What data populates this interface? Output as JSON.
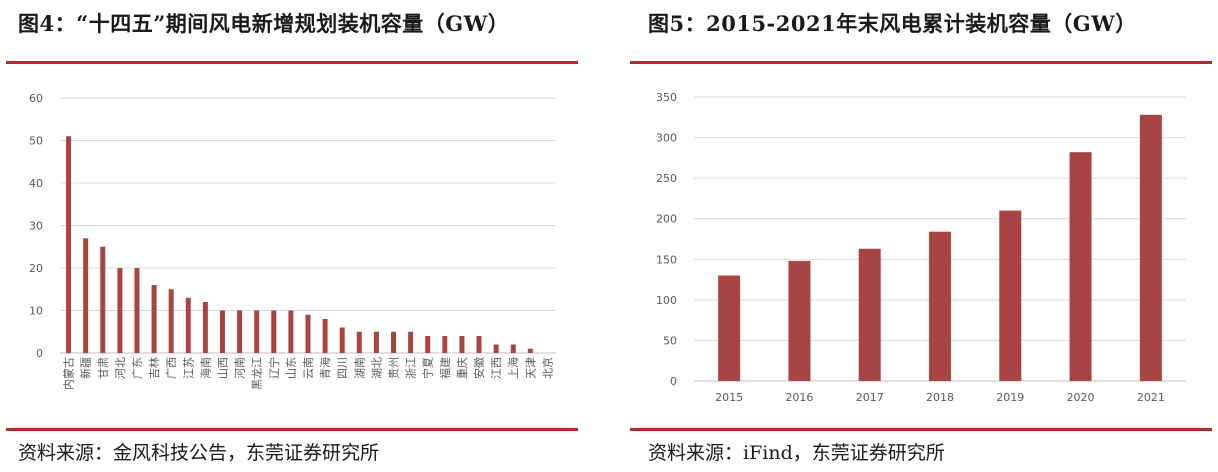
{
  "colors": {
    "accent": "#b22a2a",
    "bar": "#a84444"
  },
  "left": {
    "title": "图4：“十四五”期间风电新增规划装机容量（GW）",
    "source": "资料来源：金风科技公告，东莞证券研究所"
  },
  "right": {
    "title": "图5：2015-2021年末风电累计装机容量（GW）",
    "source": "资料来源：iFind，东莞证券研究所"
  },
  "chart_data": [
    {
      "type": "bar",
      "title": "“十四五”期间风电新增规划装机容量（GW）",
      "categories": [
        "内蒙古",
        "新疆",
        "甘肃",
        "河北",
        "广东",
        "吉林",
        "广西",
        "江苏",
        "海南",
        "山西",
        "河南",
        "黑龙江",
        "辽宁",
        "山东",
        "云南",
        "青海",
        "四川",
        "湖南",
        "湖北",
        "贵州",
        "浙江",
        "宁夏",
        "福建",
        "重庆",
        "安徽",
        "江西",
        "上海",
        "天津",
        "北京"
      ],
      "values": [
        51,
        27,
        25,
        20,
        20,
        16,
        15,
        13,
        12,
        10,
        10,
        10,
        10,
        10,
        9,
        8,
        6,
        5,
        5,
        5,
        5,
        4,
        4,
        4,
        4,
        2,
        2,
        1,
        0
      ],
      "ylim": [
        0,
        60
      ],
      "yticks": [
        0,
        10,
        20,
        30,
        40,
        50,
        60
      ],
      "grid": true,
      "legend": "none"
    },
    {
      "type": "bar",
      "title": "2015-2021年末风电累计装机容量（GW）",
      "categories": [
        "2015",
        "2016",
        "2017",
        "2018",
        "2019",
        "2020",
        "2021"
      ],
      "values": [
        130,
        148,
        163,
        184,
        210,
        282,
        328
      ],
      "ylim": [
        0,
        350
      ],
      "yticks": [
        0,
        50,
        100,
        150,
        200,
        250,
        300,
        350
      ],
      "grid": true,
      "legend": "none"
    }
  ]
}
